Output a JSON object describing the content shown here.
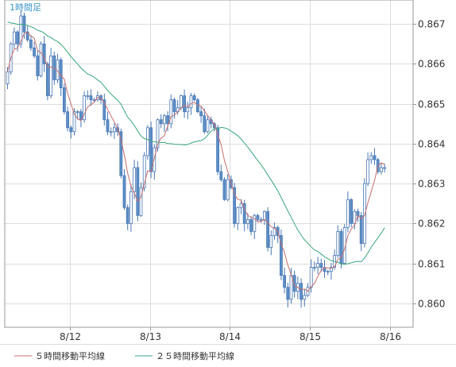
{
  "chart_data": {
    "type": "candlestick",
    "title": "1時間足",
    "x_tick_labels": [
      "8/12",
      "8/13",
      "8/14",
      "8/15",
      "8/16"
    ],
    "x_tick_candle_index": [
      19,
      43,
      67,
      91,
      115
    ],
    "y_tick_labels": [
      "0.860",
      "0.861",
      "0.862",
      "0.863",
      "0.864",
      "0.865",
      "0.866",
      "0.867"
    ],
    "ylim": [
      0.8594,
      0.8676
    ],
    "grid": true,
    "colors": {
      "up_candle": "#ffffff",
      "down_candle": "#5b8fc7",
      "candle_outline": "#4a78b5",
      "ma5": "#c86e6e",
      "ma25": "#3aa87a",
      "grid": "#dddddd",
      "frame": "#999999",
      "title": "#3a95c8"
    },
    "legend": [
      {
        "label": "５時間移動平均線",
        "color": "#c86e6e"
      },
      {
        "label": "２５時間移動平均線",
        "color": "#3aa87a"
      }
    ],
    "closes": [
      0.8658,
      0.8665,
      0.8668,
      0.8665,
      0.8672,
      0.8668,
      0.8666,
      0.8664,
      0.8662,
      0.8657,
      0.8665,
      0.866,
      0.8652,
      0.8662,
      0.8656,
      0.8661,
      0.8654,
      0.8648,
      0.8644,
      0.8643,
      0.8648,
      0.8648,
      0.8646,
      0.8652,
      0.8652,
      0.8651,
      0.8651,
      0.8652,
      0.8651,
      0.8646,
      0.8643,
      0.8643,
      0.8644,
      0.8643,
      0.8632,
      0.8624,
      0.862,
      0.8628,
      0.8634,
      0.8622,
      0.8629,
      0.8637,
      0.8644,
      0.8633,
      0.8639,
      0.8646,
      0.8645,
      0.8647,
      0.8645,
      0.8651,
      0.8648,
      0.8649,
      0.8652,
      0.8648,
      0.8649,
      0.8652,
      0.8651,
      0.8648,
      0.8647,
      0.8643,
      0.8646,
      0.8645,
      0.8644,
      0.8633,
      0.8631,
      0.8626,
      0.8631,
      0.8629,
      0.862,
      0.8624,
      0.8625,
      0.862,
      0.8621,
      0.8618,
      0.8622,
      0.8621,
      0.8621,
      0.8623,
      0.8614,
      0.8617,
      0.8619,
      0.8617,
      0.8607,
      0.8604,
      0.8601,
      0.8607,
      0.8603,
      0.8605,
      0.8601,
      0.8602,
      0.8604,
      0.8609,
      0.8609,
      0.861,
      0.8609,
      0.8608,
      0.8608,
      0.8609,
      0.8612,
      0.8618,
      0.861,
      0.8619,
      0.8626,
      0.862,
      0.8623,
      0.8622,
      0.8615,
      0.863,
      0.8636,
      0.8637,
      0.8636,
      0.8633,
      0.8634,
      0.8634
    ]
  }
}
